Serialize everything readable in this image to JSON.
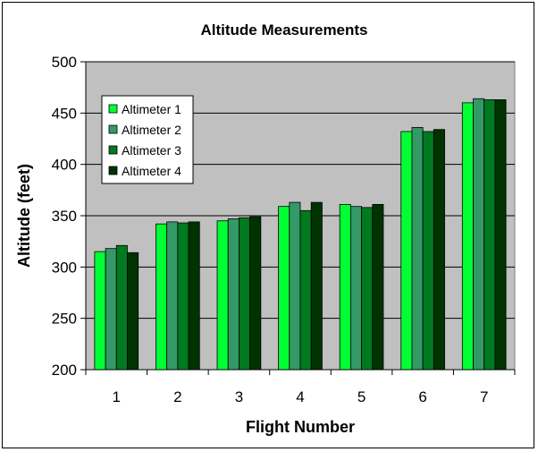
{
  "chart_data": {
    "type": "bar",
    "title": "Altitude Measurements",
    "xlabel": "Flight Number",
    "ylabel": "Altitude (feet)",
    "categories": [
      "1",
      "2",
      "3",
      "4",
      "5",
      "6",
      "7"
    ],
    "ylim": [
      200,
      500
    ],
    "yticks": [
      200,
      250,
      300,
      350,
      400,
      450,
      500
    ],
    "grid": true,
    "legend_position": "top-left",
    "plot_background": "#c0c0c0",
    "series": [
      {
        "name": "Altimeter 1",
        "color": "#00ff33",
        "values": [
          315,
          342,
          345,
          359,
          361,
          432,
          460
        ]
      },
      {
        "name": "Altimeter 2",
        "color": "#339966",
        "values": [
          318,
          344,
          347,
          363,
          359,
          436,
          464
        ]
      },
      {
        "name": "Altimeter 3",
        "color": "#007a1f",
        "values": [
          321,
          343,
          348,
          355,
          358,
          432,
          463
        ]
      },
      {
        "name": "Altimeter 4",
        "color": "#003300",
        "values": [
          314,
          344,
          349,
          363,
          361,
          434,
          463
        ]
      }
    ]
  }
}
